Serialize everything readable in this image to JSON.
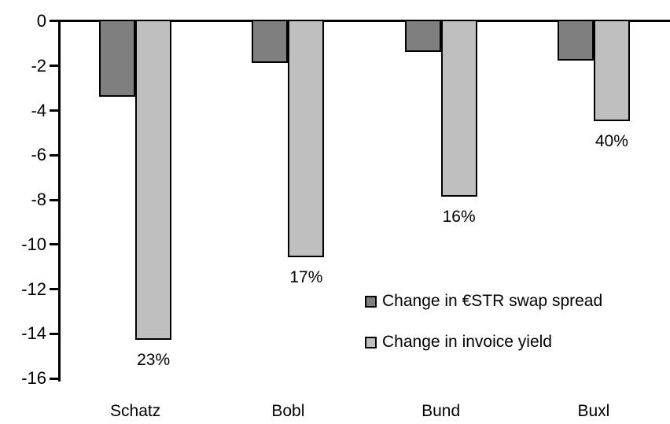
{
  "chart_data": {
    "type": "bar",
    "categories": [
      "Schatz",
      "Bobl",
      "Bund",
      "Buxl"
    ],
    "series": [
      {
        "name": "Change in €STR swap spread",
        "color": "#7f7f7f",
        "values": [
          -3.3,
          -1.8,
          -1.3,
          -1.7
        ]
      },
      {
        "name": "Change in invoice yield",
        "color": "#bfbfbf",
        "values": [
          -14.2,
          -10.5,
          -7.8,
          -4.4
        ],
        "data_labels": [
          "23%",
          "17%",
          "16%",
          "40%"
        ]
      }
    ],
    "title": "",
    "xlabel": "",
    "ylabel": "",
    "ylim": [
      -16,
      0
    ],
    "yticks": [
      0,
      -2,
      -4,
      -6,
      -8,
      -10,
      -12,
      -14,
      -16
    ],
    "grid": false,
    "legend_position": "inside-right",
    "axis_color": "#000000",
    "background_color": "#ffffff"
  }
}
